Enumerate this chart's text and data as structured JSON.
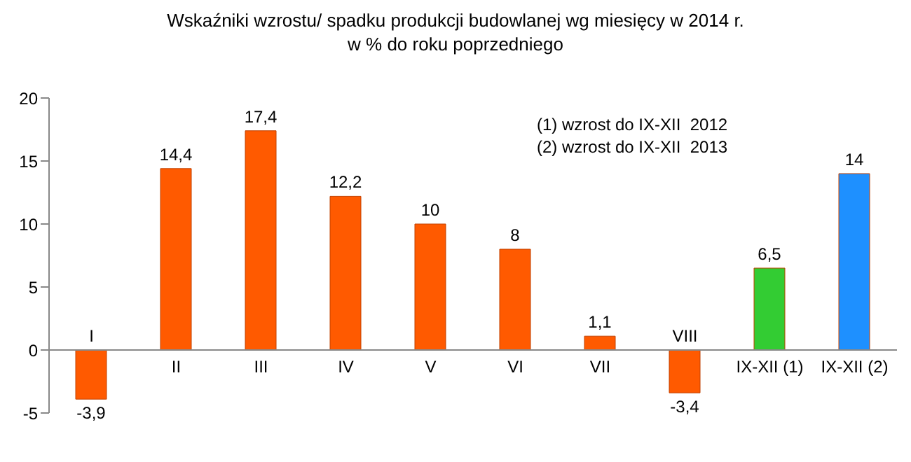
{
  "chart_data": {
    "type": "bar",
    "title": "Wskaźniki  wzrostu/  spadku produkcji budowlanej wg  miesięcy  w  2014 r.",
    "subtitle": "w % do roku poprzedniego",
    "categories": [
      "I",
      "II",
      "III",
      "IV",
      "V",
      "VI",
      "VII",
      "VIII",
      "IX-XII (1)",
      "IX-XII (2)"
    ],
    "values": [
      -3.9,
      14.4,
      17.4,
      12.2,
      10,
      8,
      1.1,
      -3.4,
      6.5,
      14
    ],
    "value_labels": [
      "-3,9",
      "14,4",
      "17,4",
      "12,2",
      "10",
      "8",
      "1,1",
      "-3,4",
      "6,5",
      "14"
    ],
    "colors": [
      "#ff5a00",
      "#ff5a00",
      "#ff5a00",
      "#ff5a00",
      "#ff5a00",
      "#ff5a00",
      "#ff5a00",
      "#ff5a00",
      "#33cc33",
      "#1e90ff"
    ],
    "ylim": [
      -5,
      20
    ],
    "yticks": [
      -5,
      0,
      5,
      10,
      15,
      20
    ],
    "grid": false,
    "legend": false,
    "annotations": [
      "(1) wzrost do IX-XII  2012",
      "(2) wzrost do IX-XII  2013"
    ]
  }
}
